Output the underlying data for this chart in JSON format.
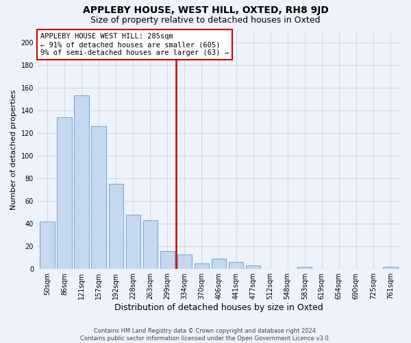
{
  "title": "APPLEBY HOUSE, WEST HILL, OXTED, RH8 9JD",
  "subtitle": "Size of property relative to detached houses in Oxted",
  "xlabel": "Distribution of detached houses by size in Oxted",
  "ylabel": "Number of detached properties",
  "bar_labels": [
    "50sqm",
    "86sqm",
    "121sqm",
    "157sqm",
    "192sqm",
    "228sqm",
    "263sqm",
    "299sqm",
    "334sqm",
    "370sqm",
    "406sqm",
    "441sqm",
    "477sqm",
    "512sqm",
    "548sqm",
    "583sqm",
    "619sqm",
    "654sqm",
    "690sqm",
    "725sqm",
    "761sqm"
  ],
  "bar_values": [
    42,
    134,
    153,
    126,
    75,
    48,
    43,
    16,
    13,
    5,
    9,
    6,
    3,
    0,
    0,
    2,
    0,
    0,
    0,
    0,
    2
  ],
  "bar_color": "#c5d8f0",
  "bar_edge_color": "#7badd4",
  "vline_color": "#cc0000",
  "vline_x": 7.5,
  "annotation_title": "APPLEBY HOUSE WEST HILL: 285sqm",
  "annotation_line1": "← 91% of detached houses are smaller (605)",
  "annotation_line2": "9% of semi-detached houses are larger (63) →",
  "ylim": [
    0,
    210
  ],
  "yticks": [
    0,
    20,
    40,
    60,
    80,
    100,
    120,
    140,
    160,
    180,
    200
  ],
  "footer_line1": "Contains HM Land Registry data © Crown copyright and database right 2024.",
  "footer_line2": "Contains public sector information licensed under the Open Government Licence v3.0.",
  "background_color": "#eef2fa",
  "grid_color": "#d0d8e8",
  "title_fontsize": 10,
  "subtitle_fontsize": 9,
  "ylabel_fontsize": 8,
  "xlabel_fontsize": 9,
  "ann_fontsize": 7.5,
  "footer_fontsize": 6
}
